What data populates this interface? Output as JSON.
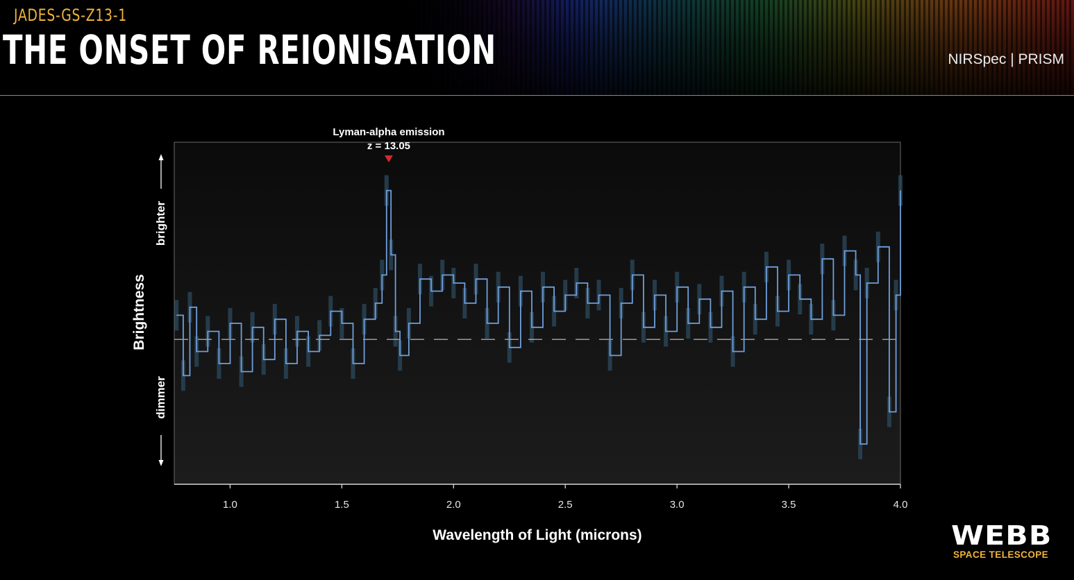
{
  "header": {
    "subtitle": "JADES-GS-Z13-1",
    "title": "THE ONSET OF REIONISATION",
    "instrument": "NIRSpec | PRISM"
  },
  "logo": {
    "wordmark": "WEBB",
    "tagline": "SPACE TELESCOPE"
  },
  "colors": {
    "spectrum": "#6f9fdc",
    "error_band": "#2c4a5e",
    "marker": "#d42a2a",
    "accent": "#f0b43c"
  },
  "chart_data": {
    "type": "line",
    "title": "",
    "xlabel": "Wavelength of Light (microns)",
    "ylabel": "Brightness",
    "ylabel_high": "brighter",
    "ylabel_low": "dimmer",
    "xlim": [
      0.75,
      4.0
    ],
    "ylim": [
      -3.6,
      4.9
    ],
    "xticks": [
      1.0,
      1.5,
      2.0,
      2.5,
      3.0,
      3.5,
      4.0
    ],
    "xtick_labels": [
      "1.0",
      "1.5",
      "2.0",
      "2.5",
      "3.0",
      "3.5",
      "4.0"
    ],
    "baseline": 0,
    "annotation": {
      "label_line1": "Lyman-alpha emission",
      "label_line2": "z = 13.05",
      "x": 1.71,
      "marker_y": 4.4
    },
    "series": [
      {
        "name": "spectrum",
        "style": "step",
        "x": [
          0.76,
          0.79,
          0.82,
          0.85,
          0.9,
          0.95,
          1.0,
          1.05,
          1.1,
          1.15,
          1.2,
          1.25,
          1.3,
          1.35,
          1.4,
          1.45,
          1.5,
          1.55,
          1.6,
          1.65,
          1.68,
          1.7,
          1.72,
          1.74,
          1.76,
          1.8,
          1.85,
          1.9,
          1.95,
          2.0,
          2.05,
          2.1,
          2.15,
          2.2,
          2.25,
          2.3,
          2.35,
          2.4,
          2.45,
          2.5,
          2.55,
          2.6,
          2.65,
          2.7,
          2.75,
          2.8,
          2.85,
          2.9,
          2.95,
          3.0,
          3.05,
          3.1,
          3.15,
          3.2,
          3.25,
          3.3,
          3.35,
          3.4,
          3.45,
          3.5,
          3.55,
          3.6,
          3.65,
          3.7,
          3.75,
          3.8,
          3.82,
          3.85,
          3.9,
          3.95,
          3.98,
          4.0
        ],
        "y": [
          0.6,
          -0.9,
          0.8,
          -0.3,
          0.2,
          -0.6,
          0.4,
          -0.8,
          0.3,
          -0.5,
          0.5,
          -0.6,
          0.2,
          -0.3,
          0.1,
          0.7,
          0.4,
          -0.6,
          0.5,
          0.9,
          1.6,
          3.7,
          2.1,
          0.2,
          -0.4,
          0.4,
          1.5,
          1.2,
          1.6,
          1.4,
          0.9,
          1.5,
          0.4,
          1.3,
          -0.2,
          1.2,
          0.3,
          1.3,
          0.7,
          1.1,
          1.4,
          0.9,
          1.1,
          -0.4,
          0.9,
          1.6,
          0.3,
          1.1,
          0.2,
          1.3,
          0.4,
          1.0,
          0.3,
          1.2,
          -0.3,
          1.3,
          0.5,
          1.8,
          0.7,
          1.6,
          1.0,
          0.5,
          2.0,
          0.6,
          2.2,
          1.6,
          -2.6,
          1.4,
          2.3,
          -1.8,
          1.1,
          3.7
        ]
      }
    ]
  }
}
